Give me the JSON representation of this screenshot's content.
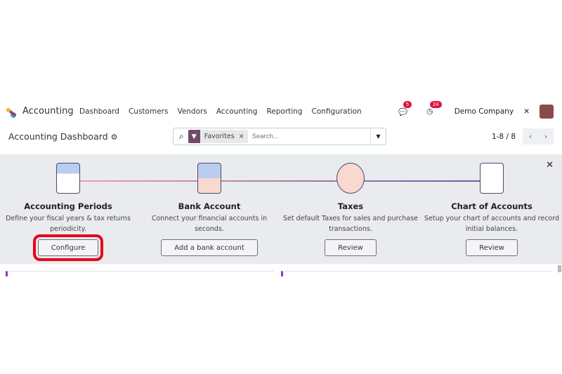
{
  "nav": {
    "app": "Accounting",
    "menu": [
      "Dashboard",
      "Customers",
      "Vendors",
      "Accounting",
      "Reporting",
      "Configuration"
    ],
    "messages_count": "5",
    "activities_count": "24",
    "company": "Demo Company"
  },
  "header": {
    "title": "Accounting Dashboard",
    "facet": "Favorites",
    "search_placeholder": "Search...",
    "pager": "1-8 / 8"
  },
  "onboarding": [
    {
      "title": "Accounting Periods",
      "desc": "Define your fiscal years & tax returns periodicity.",
      "button": "Configure",
      "icon": "calendar-icon"
    },
    {
      "title": "Bank Account",
      "desc": "Connect your financial accounts in seconds.",
      "button": "Add a bank account",
      "icon": "puzzle-icon"
    },
    {
      "title": "Taxes",
      "desc": "Set default Taxes for sales and purchase transactions.",
      "button": "Review",
      "icon": "gear-icon"
    },
    {
      "title": "Chart of Accounts",
      "desc": "Setup your chart of accounts and record initial balances.",
      "button": "Review",
      "icon": "chart-icon"
    }
  ],
  "colors": {
    "brand": "#714b67",
    "highlight": "#e8001c",
    "badge": "#e0103f"
  }
}
